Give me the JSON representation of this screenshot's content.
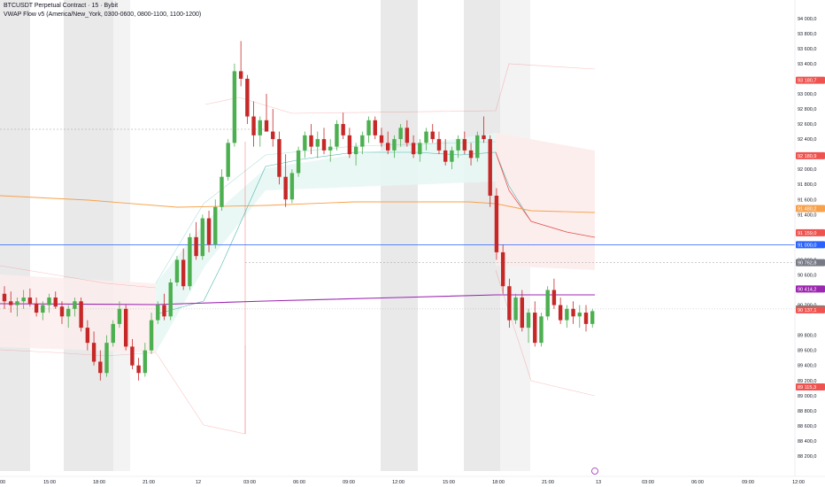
{
  "header": {
    "symbol_line": "BTCUSDT Perpetual Contract · 15 · Bybit",
    "indicator_line": "VWAP Flow v5 (America/New_York, 0300-0600, 0800-1100, 1100-1200)"
  },
  "colors": {
    "up": "#26a69a",
    "up_candle": "#4caf50",
    "down_candle": "#c62828",
    "session_shade": "#e9e9ea",
    "session_shade_light": "#f3f3f4",
    "blue_line": "#2962ff",
    "orange_line": "#f7a14a",
    "purple_line": "#9c27b0",
    "red_line": "#ef5350",
    "teal_vwap": "#26a69a",
    "teal_fill": "#e8f7f4",
    "red_fill": "#fdecec"
  },
  "chart_data": {
    "type": "candlestick",
    "title": "BTCUSDT Perpetual Contract · 15 · Bybit",
    "ylim": [
      88000,
      94150
    ],
    "y_ticks": [
      "94 000,0",
      "93 800,0",
      "93 600,0",
      "93 400,0",
      "93 000,0",
      "92 800,0",
      "92 600,0",
      "92 400,0",
      "92 000,0",
      "91 800,0",
      "91 600,0",
      "91 400,0",
      "90 800,0",
      "90 600,0",
      "90 200,0",
      "89 800,0",
      "89 600,0",
      "89 400,0",
      "89 200,0",
      "89 000,0",
      "88 800,0",
      "88 600,0",
      "88 400,0",
      "88 200,0"
    ],
    "y_tick_values": [
      94000,
      93800,
      93600,
      93400,
      93000,
      92800,
      92600,
      92400,
      92000,
      91800,
      91600,
      91400,
      90800,
      90600,
      90200,
      89800,
      89600,
      89400,
      89200,
      89000,
      88800,
      88600,
      88400,
      88200
    ],
    "x_ticks": [
      "00",
      "15:00",
      "18:00",
      "21:00",
      "12",
      "03:00",
      "06:00",
      "09:00",
      "12:00",
      "15:00",
      "18:00",
      "21:00",
      "13",
      "03:00",
      "06:00",
      "09:00",
      "12:00"
    ],
    "price_tags": [
      {
        "value": 93180,
        "label": "93 180,7",
        "color": "#ef5350"
      },
      {
        "value": 92180,
        "label": "92 180,9",
        "color": "#ef5350"
      },
      {
        "value": 91480,
        "label": "91 480,2",
        "color": "#f7a14a"
      },
      {
        "value": 91159,
        "label": "91 159,0",
        "color": "#ef5350"
      },
      {
        "value": 91000,
        "label": "91 000,0",
        "color": "#2962ff"
      },
      {
        "value": 90762,
        "label": "90 762,8",
        "color": "#787b86"
      },
      {
        "value": 90414,
        "label": "90 414,2",
        "color": "#9c27b0"
      },
      {
        "value": 90149,
        "label": "90 149,0",
        "color": "#26a69a"
      },
      {
        "value": 90137,
        "label": "90 137,1",
        "color": "#ef5350"
      },
      {
        "value": 89115,
        "label": "89 115,3",
        "color": "#ef5350"
      }
    ],
    "candles": [
      [
        90350,
        90450,
        90150,
        90250
      ],
      [
        90250,
        90380,
        90100,
        90200
      ],
      [
        90200,
        90300,
        90050,
        90250
      ],
      [
        90250,
        90400,
        90150,
        90300
      ],
      [
        90300,
        90420,
        90180,
        90220
      ],
      [
        90220,
        90300,
        90050,
        90100
      ],
      [
        90100,
        90250,
        90000,
        90200
      ],
      [
        90200,
        90350,
        90100,
        90300
      ],
      [
        90300,
        90380,
        90150,
        90180
      ],
      [
        90180,
        90250,
        89950,
        90050
      ],
      [
        90050,
        90200,
        89900,
        90150
      ],
      [
        90150,
        90300,
        90050,
        90250
      ],
      [
        90250,
        90300,
        89850,
        89900
      ],
      [
        89900,
        90000,
        89600,
        89700
      ],
      [
        89700,
        89850,
        89400,
        89450
      ],
      [
        89450,
        89600,
        89200,
        89300
      ],
      [
        89300,
        89800,
        89250,
        89700
      ],
      [
        89700,
        90000,
        89650,
        89950
      ],
      [
        89950,
        90250,
        89900,
        90150
      ],
      [
        90150,
        90200,
        89600,
        89650
      ],
      [
        89650,
        89750,
        89350,
        89400
      ],
      [
        89400,
        89500,
        89200,
        89300
      ],
      [
        89300,
        89700,
        89250,
        89600
      ],
      [
        89600,
        90100,
        89550,
        90000
      ],
      [
        90000,
        90250,
        89950,
        90200
      ],
      [
        90200,
        90350,
        90000,
        90050
      ],
      [
        90050,
        90550,
        90000,
        90500
      ],
      [
        90500,
        90850,
        90450,
        90800
      ],
      [
        90800,
        90950,
        90400,
        90450
      ],
      [
        90450,
        91150,
        90400,
        91100
      ],
      [
        91100,
        91300,
        90800,
        90850
      ],
      [
        90850,
        91400,
        90800,
        91350
      ],
      [
        91350,
        91450,
        90900,
        91000
      ],
      [
        91000,
        91600,
        90950,
        91500
      ],
      [
        91500,
        92000,
        91450,
        91900
      ],
      [
        91900,
        92400,
        91850,
        92350
      ],
      [
        92350,
        93400,
        92300,
        93300
      ],
      [
        93300,
        93700,
        93100,
        93200
      ],
      [
        93200,
        93250,
        92600,
        92700
      ],
      [
        92700,
        92900,
        92300,
        92450
      ],
      [
        92450,
        92700,
        92300,
        92650
      ],
      [
        92650,
        93000,
        92550,
        92500
      ],
      [
        92500,
        92800,
        92300,
        92400
      ],
      [
        92400,
        92500,
        91800,
        91900
      ],
      [
        91900,
        92200,
        91500,
        91600
      ],
      [
        91600,
        92000,
        91550,
        91950
      ],
      [
        91950,
        92300,
        91900,
        92250
      ],
      [
        92250,
        92500,
        92150,
        92450
      ],
      [
        92450,
        92600,
        92200,
        92300
      ],
      [
        92300,
        92500,
        92150,
        92400
      ],
      [
        92400,
        92550,
        92200,
        92250
      ],
      [
        92250,
        92400,
        92100,
        92300
      ],
      [
        92300,
        92650,
        92250,
        92600
      ],
      [
        92600,
        92750,
        92400,
        92450
      ],
      [
        92450,
        92550,
        92150,
        92200
      ],
      [
        92200,
        92350,
        92050,
        92300
      ],
      [
        92300,
        92500,
        92200,
        92450
      ],
      [
        92450,
        92700,
        92350,
        92650
      ],
      [
        92650,
        92700,
        92400,
        92450
      ],
      [
        92450,
        92550,
        92300,
        92350
      ],
      [
        92350,
        92500,
        92200,
        92250
      ],
      [
        92250,
        92450,
        92150,
        92400
      ],
      [
        92400,
        92600,
        92300,
        92550
      ],
      [
        92550,
        92650,
        92300,
        92350
      ],
      [
        92350,
        92450,
        92150,
        92200
      ],
      [
        92200,
        92400,
        92100,
        92350
      ],
      [
        92350,
        92550,
        92250,
        92500
      ],
      [
        92500,
        92600,
        92350,
        92400
      ],
      [
        92400,
        92500,
        92200,
        92250
      ],
      [
        92250,
        92400,
        92050,
        92100
      ],
      [
        92100,
        92300,
        92000,
        92250
      ],
      [
        92250,
        92450,
        92150,
        92400
      ],
      [
        92400,
        92500,
        92200,
        92250
      ],
      [
        92250,
        92350,
        92050,
        92150
      ],
      [
        92150,
        92500,
        92100,
        92450
      ],
      [
        92450,
        92700,
        92350,
        92400
      ],
      [
        92400,
        92450,
        91500,
        91650
      ],
      [
        91650,
        91750,
        90800,
        90900
      ],
      [
        90900,
        91000,
        90350,
        90450
      ],
      [
        90450,
        90550,
        89900,
        90000
      ],
      [
        90000,
        90350,
        89950,
        90300
      ],
      [
        90300,
        90400,
        89850,
        89900
      ],
      [
        89900,
        90150,
        89700,
        90100
      ],
      [
        90100,
        90250,
        89650,
        89700
      ],
      [
        89700,
        90100,
        89650,
        90050
      ],
      [
        90050,
        90450,
        90000,
        90400
      ],
      [
        90400,
        90550,
        90150,
        90200
      ],
      [
        90200,
        90300,
        89950,
        90000
      ],
      [
        90000,
        90200,
        89900,
        90150
      ],
      [
        90150,
        90250,
        89950,
        90050
      ],
      [
        90050,
        90200,
        89900,
        90100
      ],
      [
        90100,
        90200,
        89850,
        89950
      ],
      [
        89950,
        90150,
        89900,
        90120
      ]
    ]
  }
}
